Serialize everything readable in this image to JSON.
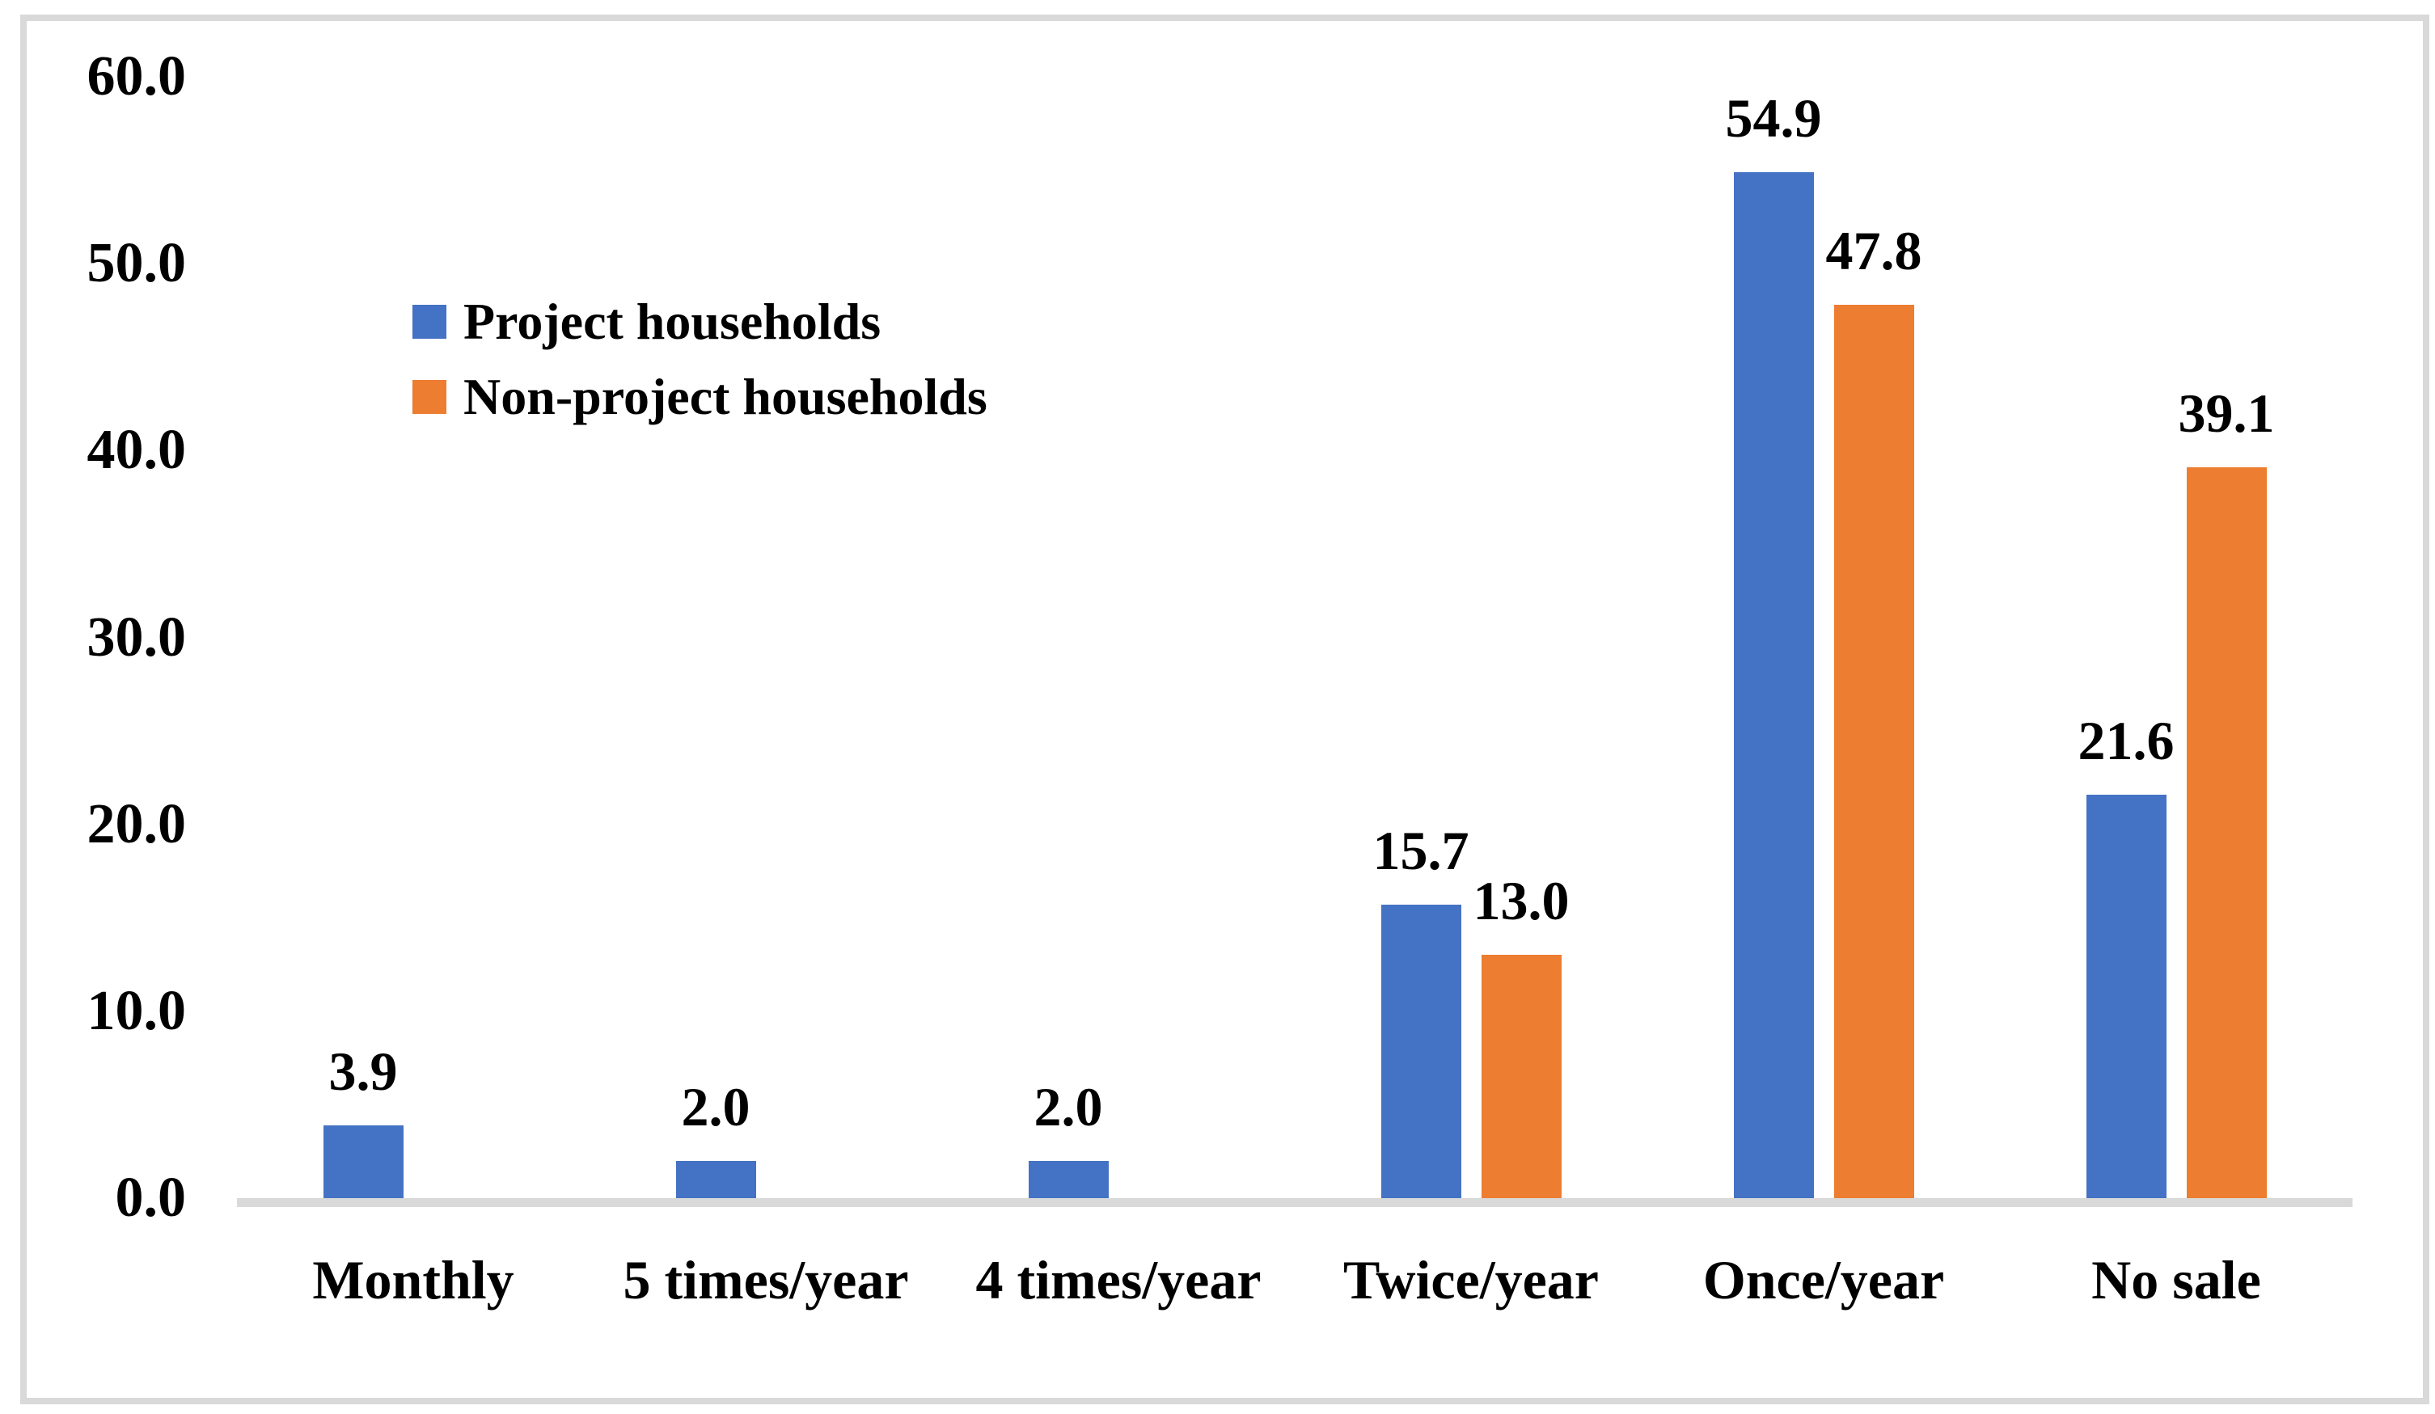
{
  "chart_data": {
    "type": "bar",
    "categories": [
      "Monthly",
      "5 times/year",
      "4 times/year",
      "Twice/year",
      "Once/year",
      "No sale"
    ],
    "series": [
      {
        "name": "Project households",
        "color": "#4472C4",
        "values": [
          3.9,
          2.0,
          2.0,
          15.7,
          54.9,
          21.6
        ]
      },
      {
        "name": "Non-project households",
        "color": "#ED7D31",
        "values": [
          0,
          0,
          0,
          13.0,
          47.8,
          39.1
        ]
      }
    ],
    "value_label_format": "one-decimal",
    "hide_zero_bars": true,
    "title": "",
    "xlabel": "",
    "ylabel": "",
    "ylim": [
      0,
      60
    ],
    "y_ticks": [
      "60.0",
      "50.0",
      "40.0",
      "30.0",
      "20.0",
      "10.0",
      "0.0"
    ],
    "grid": false,
    "legend_position": "inside-upper-left",
    "axis_line_color": "#D9D9D9",
    "frame_border_color": "#D9D9D9",
    "text_color": "#000000",
    "background_color": "#FFFFFF"
  }
}
